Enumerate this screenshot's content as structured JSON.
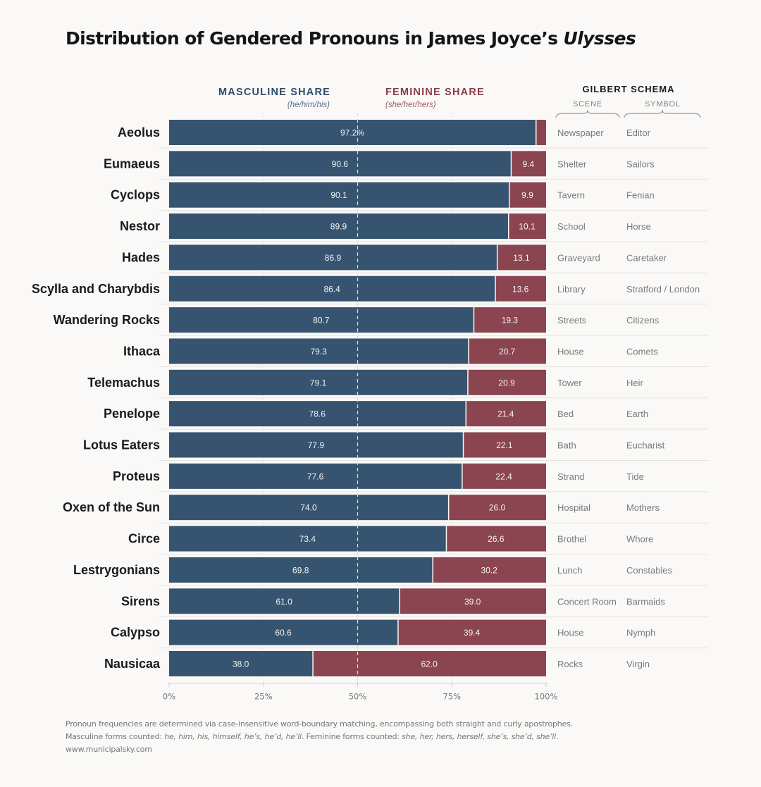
{
  "title": {
    "prefix": "Distribution of Gendered Pronouns in James Joyce’s ",
    "italic": "Ulysses"
  },
  "headers": {
    "masculine": "MASCULINE SHARE",
    "masculine_sub": "(he/him/his)",
    "feminine": "FEMININE SHARE",
    "feminine_sub": "(she/her/hers)",
    "schema_title": "GILBERT SCHEMA",
    "scene": "SCENE",
    "symbol": "SYMBOL"
  },
  "colors": {
    "masculine": "#36546f",
    "feminine": "#8b4550",
    "background": "#faf9f7"
  },
  "chart_data": {
    "type": "bar",
    "orientation": "horizontal-stacked-100",
    "title": "Distribution of Gendered Pronouns in James Joyce’s Ulysses",
    "xlabel": "",
    "ylabel": "",
    "xlim": [
      0,
      100
    ],
    "x_ticks": [
      "0%",
      "25%",
      "50%",
      "75%",
      "100%"
    ],
    "reference_line": 50,
    "grid": true,
    "categories": [
      "Aeolus",
      "Eumaeus",
      "Cyclops",
      "Nestor",
      "Hades",
      "Scylla and Charybdis",
      "Wandering Rocks",
      "Ithaca",
      "Telemachus",
      "Penelope",
      "Lotus Eaters",
      "Proteus",
      "Oxen of the Sun",
      "Circe",
      "Lestrygonians",
      "Sirens",
      "Calypso",
      "Nausicaa"
    ],
    "series": [
      {
        "name": "Masculine share (he/him/his)",
        "values": [
          97.2,
          90.6,
          90.1,
          89.9,
          86.9,
          86.4,
          80.7,
          79.3,
          79.1,
          78.6,
          77.9,
          77.6,
          74.0,
          73.4,
          69.8,
          61.0,
          60.6,
          38.0
        ],
        "labels": [
          "97.2%",
          "90.6",
          "90.1",
          "89.9",
          "86.9",
          "86.4",
          "80.7",
          "79.3",
          "79.1",
          "78.6",
          "77.9",
          "77.6",
          "74.0",
          "73.4",
          "69.8",
          "61.0",
          "60.6",
          "38.0"
        ]
      },
      {
        "name": "Feminine share (she/her/hers)",
        "values": [
          2.8,
          9.4,
          9.9,
          10.1,
          13.1,
          13.6,
          19.3,
          20.7,
          20.9,
          21.4,
          22.1,
          22.4,
          26.0,
          26.6,
          30.2,
          39.0,
          39.4,
          62.0
        ],
        "labels": [
          "",
          "9.4",
          "9.9",
          "10.1",
          "13.1",
          "13.6",
          "19.3",
          "20.7",
          "20.9",
          "21.4",
          "22.1",
          "22.4",
          "26.0",
          "26.6",
          "30.2",
          "39.0",
          "39.4",
          "62.0"
        ]
      }
    ],
    "table": {
      "columns": [
        "Scene",
        "Symbol"
      ],
      "scene": [
        "Newspaper",
        "Shelter",
        "Tavern",
        "School",
        "Graveyard",
        "Library",
        "Streets",
        "House",
        "Tower",
        "Bed",
        "Bath",
        "Strand",
        "Hospital",
        "Brothel",
        "Lunch",
        "Concert Room",
        "House",
        "Rocks"
      ],
      "symbol": [
        "Editor",
        "Sailors",
        "Fenian",
        "Horse",
        "Caretaker",
        "Stratford / London",
        "Citizens",
        "Comets",
        "Heir",
        "Earth",
        "Eucharist",
        "Tide",
        "Mothers",
        "Whore",
        "Constables",
        "Barmaids",
        "Nymph",
        "Virgin"
      ]
    }
  },
  "footnote": {
    "line1": "Pronoun frequencies are determined via case-insensitive word-boundary matching, encompassing both straight and curly apostrophes.",
    "line2_a": "Masculine forms counted: ",
    "line2_b": "he, him, his, himself, he’s, he’d, he’ll",
    "line2_c": ". Feminine forms counted: ",
    "line2_d": "she, her, hers, herself, she’s, she’d, she’ll",
    "line2_e": ".",
    "line3": "www.municipalsky.com"
  }
}
